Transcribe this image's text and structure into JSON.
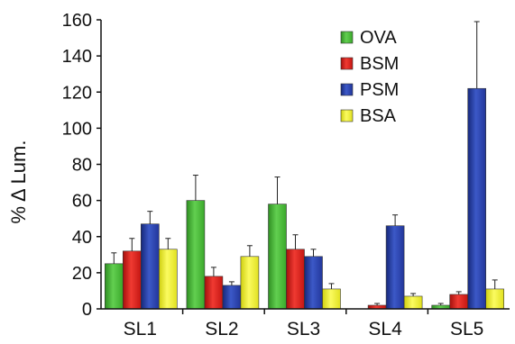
{
  "chart_data": {
    "type": "bar",
    "title": "",
    "xlabel": "",
    "ylabel": "% Δ Lum.",
    "ylim": [
      0,
      160
    ],
    "yticks": [
      0,
      20,
      40,
      60,
      80,
      100,
      120,
      140,
      160
    ],
    "categories": [
      "SL1",
      "SL2",
      "SL3",
      "SL4",
      "SL5"
    ],
    "grid": false,
    "legend_position": "top-right",
    "series": [
      {
        "name": "OVA",
        "color": "#4dbe3c",
        "values": [
          25,
          60,
          58,
          0,
          2
        ],
        "errors": [
          6,
          14,
          15,
          0,
          1
        ]
      },
      {
        "name": "BSM",
        "color": "#e8221d",
        "values": [
          32,
          18,
          33,
          2,
          8
        ],
        "errors": [
          7,
          5,
          8,
          1,
          1.5
        ]
      },
      {
        "name": "PSM",
        "color": "#2b45b0",
        "values": [
          47,
          13,
          29,
          46,
          122
        ],
        "errors": [
          7,
          2,
          4,
          6,
          37
        ]
      },
      {
        "name": "BSA",
        "color": "#f2f230",
        "values": [
          33,
          29,
          11,
          7,
          11
        ],
        "errors": [
          6,
          6,
          3,
          1.5,
          5
        ]
      }
    ]
  }
}
